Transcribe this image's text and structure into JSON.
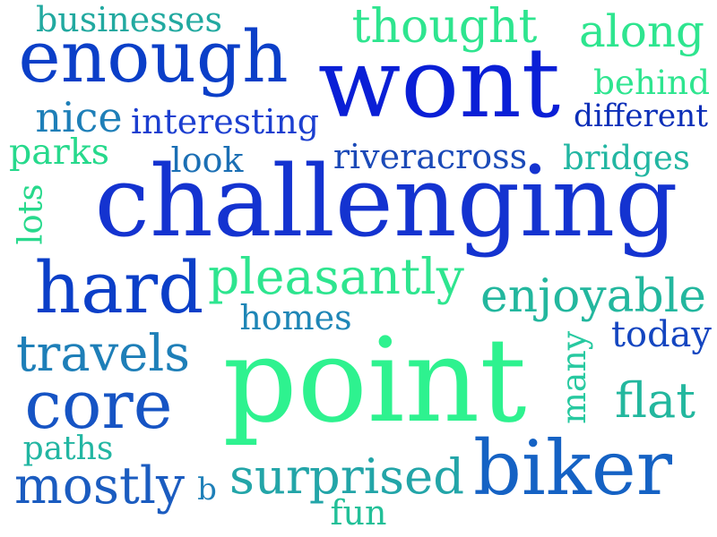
{
  "word_cloud": {
    "words": [
      {
        "text": "businesses",
        "color": "#22a9a0"
      },
      {
        "text": "thought",
        "color": "#2ee58f"
      },
      {
        "text": "along",
        "color": "#2ee58f"
      },
      {
        "text": "enough",
        "color": "#0b3fc8"
      },
      {
        "text": "wont",
        "color": "#0a1fd6"
      },
      {
        "text": "behind",
        "color": "#2ee58f"
      },
      {
        "text": "nice",
        "color": "#1e7fb8"
      },
      {
        "text": "interesting",
        "color": "#1c3fd0"
      },
      {
        "text": "different",
        "color": "#0d2fb8"
      },
      {
        "text": "parks",
        "color": "#27d98c"
      },
      {
        "text": "look",
        "color": "#1b6fb4"
      },
      {
        "text": "riveracross",
        "color": "#1b4ab8"
      },
      {
        "text": "bridges",
        "color": "#22b6a2"
      },
      {
        "text": "lots",
        "color": "#27d98c"
      },
      {
        "text": "challenging",
        "color": "#1433d0"
      },
      {
        "text": "hard",
        "color": "#0b3fc8"
      },
      {
        "text": "pleasantly",
        "color": "#2ee58f"
      },
      {
        "text": "enjoyable",
        "color": "#23b79e"
      },
      {
        "text": "homes",
        "color": "#1e86b6"
      },
      {
        "text": "travels",
        "color": "#1e7fb8"
      },
      {
        "text": "point",
        "color": "#2ef28f"
      },
      {
        "text": "many",
        "color": "#27c9a0"
      },
      {
        "text": "today",
        "color": "#1446c0"
      },
      {
        "text": "core",
        "color": "#1654c4"
      },
      {
        "text": "flat",
        "color": "#23b79e"
      },
      {
        "text": "paths",
        "color": "#22b6a2"
      },
      {
        "text": "biker",
        "color": "#1562c4"
      },
      {
        "text": "mostly",
        "color": "#1b5cc0"
      },
      {
        "text": "b",
        "color": "#1e7fb8"
      },
      {
        "text": "surprised",
        "color": "#23a5a8"
      },
      {
        "text": "fun",
        "color": "#22c098"
      }
    ]
  }
}
